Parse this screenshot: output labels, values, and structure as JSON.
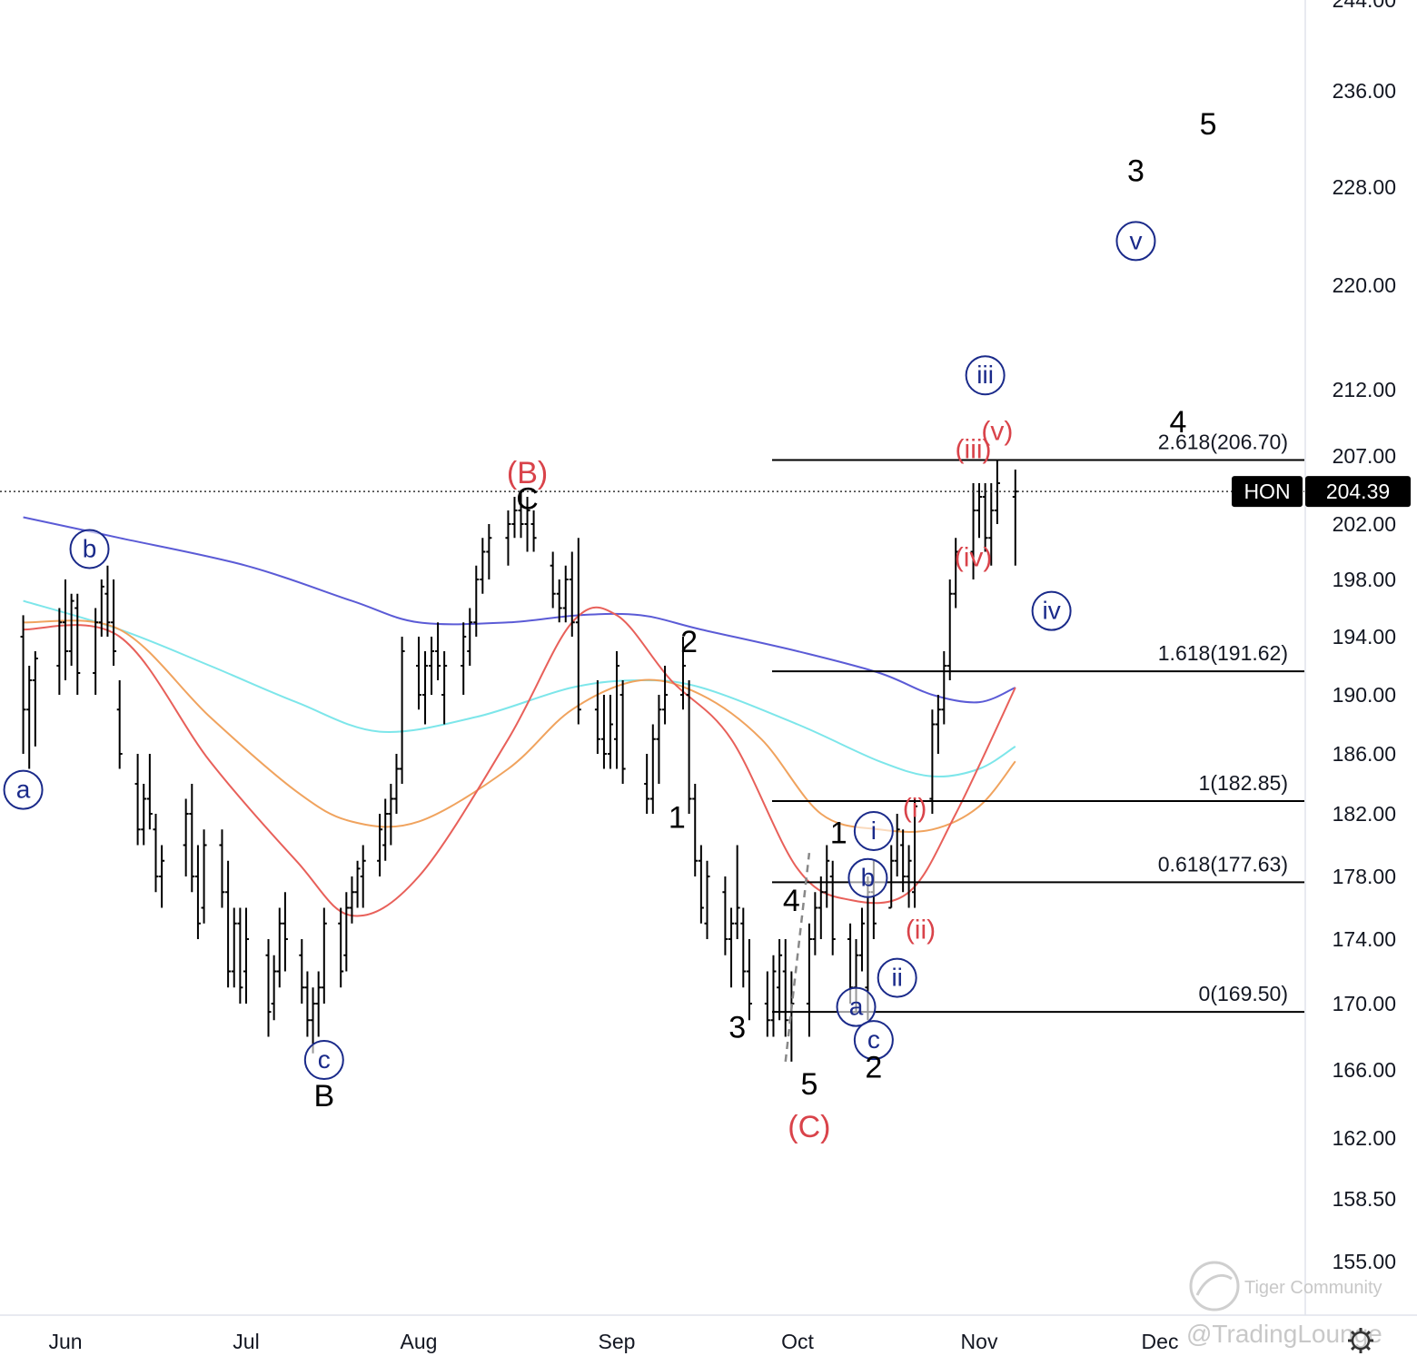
{
  "chart_data": {
    "type": "bar",
    "symbol": "HON",
    "last_price": "204.39",
    "y_axis": {
      "ticks": [
        "244.00",
        "236.00",
        "228.00",
        "220.00",
        "212.00",
        "207.00",
        "202.00",
        "198.00",
        "194.00",
        "190.00",
        "186.00",
        "182.00",
        "178.00",
        "174.00",
        "170.00",
        "166.00",
        "162.00",
        "158.50",
        "155.00"
      ]
    },
    "x_axis": {
      "ticks": [
        "Jun",
        "Jul",
        "Aug",
        "Sep",
        "Oct",
        "Nov",
        "Dec"
      ]
    },
    "fib_levels": [
      {
        "label": "2.618(206.70)",
        "value": 206.7
      },
      {
        "label": "1.618(191.62)",
        "value": 191.62
      },
      {
        "label": "1(182.85)",
        "value": 182.85
      },
      {
        "label": "0.618(177.63)",
        "value": 177.63
      },
      {
        "label": "0(169.50)",
        "value": 169.5
      }
    ],
    "ohlc": [
      [
        "2022-05-25",
        194,
        195.5,
        186,
        189
      ],
      [
        "2022-05-26",
        189,
        192,
        185,
        191
      ],
      [
        "2022-05-27",
        191,
        193,
        186.5,
        192.5
      ],
      [
        "2022-05-31",
        192,
        196,
        190,
        195
      ],
      [
        "2022-06-01",
        195,
        198,
        191,
        193
      ],
      [
        "2022-06-02",
        193,
        197,
        192,
        196.5
      ],
      [
        "2022-06-03",
        196,
        197,
        190,
        191.5
      ],
      [
        "2022-06-06",
        191.5,
        196,
        190,
        195
      ],
      [
        "2022-06-07",
        195,
        198,
        194,
        197.5
      ],
      [
        "2022-06-08",
        197,
        199,
        194,
        195
      ],
      [
        "2022-06-09",
        195,
        198,
        192,
        193
      ],
      [
        "2022-06-10",
        189,
        191,
        185,
        186
      ],
      [
        "2022-06-13",
        184,
        186,
        180,
        181
      ],
      [
        "2022-06-14",
        181,
        184,
        180,
        183
      ],
      [
        "2022-06-15",
        183,
        186,
        181,
        182
      ],
      [
        "2022-06-16",
        181,
        182,
        177,
        178
      ],
      [
        "2022-06-17",
        178,
        180,
        176,
        179
      ],
      [
        "2022-06-21",
        180,
        183,
        178,
        182
      ],
      [
        "2022-06-22",
        182,
        184,
        177,
        178
      ],
      [
        "2022-06-23",
        178,
        180,
        174,
        175
      ],
      [
        "2022-06-24",
        176,
        181,
        175,
        180
      ],
      [
        "2022-06-27",
        180,
        181,
        176,
        177
      ],
      [
        "2022-06-28",
        177,
        179,
        171,
        172
      ],
      [
        "2022-06-29",
        172,
        176,
        171,
        175
      ],
      [
        "2022-06-30",
        175,
        176,
        170,
        171
      ],
      [
        "2022-07-01",
        172,
        176,
        170,
        174
      ],
      [
        "2022-07-05",
        173,
        174,
        168,
        169.5
      ],
      [
        "2022-07-06",
        170,
        173,
        169,
        172
      ],
      [
        "2022-07-07",
        172,
        176,
        171,
        175
      ],
      [
        "2022-07-08",
        175,
        177,
        172,
        174
      ],
      [
        "2022-07-11",
        173,
        174,
        170,
        171
      ],
      [
        "2022-07-12",
        171,
        172,
        168,
        169
      ],
      [
        "2022-07-13",
        169,
        171,
        167,
        170
      ],
      [
        "2022-07-14",
        170,
        172,
        168,
        171
      ],
      [
        "2022-07-15",
        171,
        176,
        170,
        175
      ],
      [
        "2022-07-18",
        175,
        176,
        171,
        172
      ],
      [
        "2022-07-19",
        173,
        177,
        172,
        176
      ],
      [
        "2022-07-20",
        176,
        178,
        175,
        177
      ],
      [
        "2022-07-21",
        177,
        179,
        176,
        178.5
      ],
      [
        "2022-07-22",
        178,
        180,
        176,
        179
      ],
      [
        "2022-07-25",
        179,
        182,
        178,
        181
      ],
      [
        "2022-07-26",
        180,
        183,
        179,
        182
      ],
      [
        "2022-07-27",
        182,
        184,
        180,
        183
      ],
      [
        "2022-07-28",
        183,
        186,
        182,
        185
      ],
      [
        "2022-07-29",
        185,
        194,
        184,
        193
      ],
      [
        "2022-08-01",
        192,
        194,
        189,
        190
      ],
      [
        "2022-08-02",
        190,
        193,
        188,
        192
      ],
      [
        "2022-08-03",
        192,
        194,
        190,
        193
      ],
      [
        "2022-08-04",
        193,
        195,
        191,
        192
      ],
      [
        "2022-08-05",
        190,
        193,
        188,
        192
      ],
      [
        "2022-08-08",
        192,
        195,
        190,
        194
      ],
      [
        "2022-08-09",
        193,
        196,
        192,
        195
      ],
      [
        "2022-08-10",
        195,
        199,
        194,
        198
      ],
      [
        "2022-08-11",
        198,
        201,
        197,
        200
      ],
      [
        "2022-08-12",
        200,
        202,
        198,
        201
      ],
      [
        "2022-08-15",
        201,
        203,
        199,
        202
      ],
      [
        "2022-08-16",
        202,
        204,
        201,
        203
      ],
      [
        "2022-08-17",
        203,
        204.5,
        201,
        202
      ],
      [
        "2022-08-18",
        202,
        204,
        200,
        203
      ],
      [
        "2022-08-19",
        202,
        203,
        200,
        201
      ],
      [
        "2022-08-22",
        199,
        200,
        196,
        197
      ],
      [
        "2022-08-23",
        197,
        198,
        195,
        196
      ],
      [
        "2022-08-24",
        196,
        199,
        195,
        198
      ],
      [
        "2022-08-25",
        198,
        200,
        194,
        195
      ],
      [
        "2022-08-26",
        195,
        201,
        188,
        189
      ],
      [
        "2022-08-29",
        189,
        191,
        186,
        187
      ],
      [
        "2022-08-30",
        187,
        190,
        185,
        186
      ],
      [
        "2022-08-31",
        186,
        190,
        185,
        188
      ],
      [
        "2022-09-01",
        187,
        193,
        185,
        192
      ],
      [
        "2022-09-02",
        190,
        191,
        184,
        185
      ],
      [
        "2022-09-06",
        184,
        186,
        182,
        183
      ],
      [
        "2022-09-07",
        183,
        188,
        182,
        187
      ],
      [
        "2022-09-08",
        187,
        190,
        184,
        189
      ],
      [
        "2022-09-09",
        189,
        192,
        188,
        190
      ],
      [
        "2022-09-12",
        190,
        194,
        189,
        192
      ],
      [
        "2022-09-13",
        190,
        191,
        182,
        183
      ],
      [
        "2022-09-14",
        183,
        184,
        178,
        179
      ],
      [
        "2022-09-15",
        179,
        180,
        175,
        176
      ],
      [
        "2022-09-16",
        175,
        179,
        174,
        178
      ],
      [
        "2022-09-19",
        177,
        178,
        173,
        174
      ],
      [
        "2022-09-20",
        174,
        176,
        171,
        175
      ],
      [
        "2022-09-21",
        175,
        180,
        174,
        176
      ],
      [
        "2022-09-22",
        175,
        176,
        171,
        172
      ],
      [
        "2022-09-23",
        172,
        174,
        169,
        170
      ],
      [
        "2022-09-26",
        170,
        172,
        168,
        169
      ],
      [
        "2022-09-27",
        169,
        173,
        168,
        172
      ],
      [
        "2022-09-28",
        171,
        174,
        169,
        173
      ],
      [
        "2022-09-29",
        172,
        174,
        168,
        169
      ],
      [
        "2022-09-30",
        169,
        172,
        166.5,
        170
      ],
      [
        "2022-10-03",
        170,
        175,
        168,
        174
      ],
      [
        "2022-10-04",
        174,
        177,
        173,
        176
      ],
      [
        "2022-10-05",
        176,
        178,
        174,
        177
      ],
      [
        "2022-10-06",
        177,
        180,
        176,
        179
      ],
      [
        "2022-10-07",
        178,
        179,
        173,
        174
      ],
      [
        "2022-10-10",
        174,
        175,
        170,
        171
      ],
      [
        "2022-10-11",
        171,
        174,
        169.5,
        173
      ],
      [
        "2022-10-12",
        173,
        176,
        172,
        175
      ],
      [
        "2022-10-13",
        171,
        178,
        169,
        177
      ],
      [
        "2022-10-14",
        177,
        179,
        174,
        175
      ],
      [
        "2022-10-17",
        176,
        180,
        176,
        179
      ],
      [
        "2022-10-18",
        179,
        182,
        178,
        181
      ],
      [
        "2022-10-19",
        180,
        181,
        177,
        178
      ],
      [
        "2022-10-20",
        178,
        180,
        176,
        179
      ],
      [
        "2022-10-21",
        177,
        183,
        176,
        182.5
      ],
      [
        "2022-10-24",
        183,
        189,
        182,
        188
      ],
      [
        "2022-10-25",
        188,
        190,
        186,
        189
      ],
      [
        "2022-10-26",
        189,
        193,
        188,
        192
      ],
      [
        "2022-10-27",
        192,
        198,
        191,
        197
      ],
      [
        "2022-10-28",
        197,
        201,
        196,
        200
      ],
      [
        "2022-10-31",
        200,
        205,
        198,
        203
      ],
      [
        "2022-11-01",
        203,
        205,
        201,
        204
      ],
      [
        "2022-11-02",
        204,
        205,
        200,
        201
      ],
      [
        "2022-11-03",
        201,
        205,
        199,
        203
      ],
      [
        "2022-11-04",
        203,
        206.7,
        202,
        205
      ],
      [
        "2022-11-07",
        204,
        206,
        199,
        204.39
      ]
    ],
    "moving_averages": [
      {
        "color": "#5b5bd6",
        "points": [
          [
            "2022-05-25",
            202.5
          ],
          [
            "2022-06-10",
            201
          ],
          [
            "2022-07-01",
            199
          ],
          [
            "2022-07-20",
            196.5
          ],
          [
            "2022-08-01",
            195
          ],
          [
            "2022-08-15",
            195
          ],
          [
            "2022-08-26",
            195.5
          ],
          [
            "2022-09-05",
            195.5
          ],
          [
            "2022-09-15",
            194.5
          ],
          [
            "2022-10-01",
            193
          ],
          [
            "2022-10-15",
            191.5
          ],
          [
            "2022-10-24",
            190
          ],
          [
            "2022-11-01",
            189.5
          ],
          [
            "2022-11-07",
            190.5
          ]
        ]
      },
      {
        "color": "#7de6ea",
        "points": [
          [
            "2022-05-25",
            196.5
          ],
          [
            "2022-06-10",
            194.5
          ],
          [
            "2022-06-25",
            192
          ],
          [
            "2022-07-10",
            189.5
          ],
          [
            "2022-07-25",
            187.5
          ],
          [
            "2022-08-10",
            188.5
          ],
          [
            "2022-08-25",
            190.5
          ],
          [
            "2022-09-05",
            191
          ],
          [
            "2022-09-15",
            190.5
          ],
          [
            "2022-10-01",
            188
          ],
          [
            "2022-10-15",
            185.5
          ],
          [
            "2022-10-24",
            184.5
          ],
          [
            "2022-11-01",
            185
          ],
          [
            "2022-11-07",
            186.5
          ]
        ]
      },
      {
        "color": "#f0a35e",
        "points": [
          [
            "2022-05-25",
            195
          ],
          [
            "2022-06-10",
            194.5
          ],
          [
            "2022-06-25",
            188.5
          ],
          [
            "2022-07-10",
            183.5
          ],
          [
            "2022-07-20",
            181.5
          ],
          [
            "2022-08-01",
            181.5
          ],
          [
            "2022-08-15",
            185
          ],
          [
            "2022-08-25",
            189
          ],
          [
            "2022-09-05",
            191
          ],
          [
            "2022-09-15",
            190
          ],
          [
            "2022-09-25",
            187
          ],
          [
            "2022-10-05",
            182
          ],
          [
            "2022-10-15",
            181
          ],
          [
            "2022-10-24",
            181
          ],
          [
            "2022-11-01",
            182.5
          ],
          [
            "2022-11-07",
            185.5
          ]
        ]
      },
      {
        "color": "#e8605a",
        "points": [
          [
            "2022-05-25",
            194.5
          ],
          [
            "2022-06-10",
            194
          ],
          [
            "2022-06-25",
            185.5
          ],
          [
            "2022-07-10",
            179
          ],
          [
            "2022-07-20",
            175.5
          ],
          [
            "2022-08-01",
            178
          ],
          [
            "2022-08-15",
            187
          ],
          [
            "2022-08-25",
            195
          ],
          [
            "2022-09-01",
            195.5
          ],
          [
            "2022-09-10",
            191
          ],
          [
            "2022-09-20",
            187
          ],
          [
            "2022-10-01",
            178.5
          ],
          [
            "2022-10-10",
            176.5
          ],
          [
            "2022-10-20",
            177
          ],
          [
            "2022-10-28",
            182
          ],
          [
            "2022-11-07",
            190.5
          ]
        ]
      }
    ],
    "wave_labels": [
      {
        "text": "a",
        "style": "circle",
        "date": "2022-05-25",
        "price": 183.6
      },
      {
        "text": "b",
        "style": "circle",
        "date": "2022-06-05",
        "price": 200.2
      },
      {
        "text": "c",
        "style": "circle",
        "date": "2022-07-15",
        "price": 166.6
      },
      {
        "text": "B",
        "style": "black",
        "date": "2022-07-15",
        "price": 164.5
      },
      {
        "text": "(B)",
        "style": "redbig",
        "date": "2022-08-18",
        "price": 205.8
      },
      {
        "text": "C",
        "style": "black",
        "date": "2022-08-18",
        "price": 203.9
      },
      {
        "text": "2",
        "style": "black",
        "date": "2022-09-13",
        "price": 193.7
      },
      {
        "text": "1",
        "style": "black",
        "date": "2022-09-11",
        "price": 181.8
      },
      {
        "text": "3",
        "style": "black",
        "date": "2022-09-21",
        "price": 168.6
      },
      {
        "text": "4",
        "style": "black",
        "date": "2022-09-30",
        "price": 176.5
      },
      {
        "text": "5",
        "style": "black",
        "date": "2022-10-03",
        "price": 165.2
      },
      {
        "text": "(C)",
        "style": "redbig",
        "date": "2022-10-03",
        "price": 162.7
      },
      {
        "text": "1",
        "style": "black",
        "date": "2022-10-08",
        "price": 180.8
      },
      {
        "text": "i",
        "style": "circle",
        "date": "2022-10-14",
        "price": 180.9
      },
      {
        "text": "b",
        "style": "circle",
        "date": "2022-10-13",
        "price": 177.9
      },
      {
        "text": "a",
        "style": "circle",
        "date": "2022-10-11",
        "price": 169.8
      },
      {
        "text": "c",
        "style": "circle",
        "date": "2022-10-14",
        "price": 167.8
      },
      {
        "text": "2",
        "style": "black",
        "date": "2022-10-14",
        "price": 166.2
      },
      {
        "text": "ii",
        "style": "circle",
        "date": "2022-10-18",
        "price": 171.6
      },
      {
        "text": "(i)",
        "style": "red",
        "date": "2022-10-21",
        "price": 182.4
      },
      {
        "text": "(ii)",
        "style": "red",
        "date": "2022-10-22",
        "price": 174.6
      },
      {
        "text": "(iii)",
        "style": "red",
        "date": "2022-10-31",
        "price": 207.5
      },
      {
        "text": "(v)",
        "style": "red",
        "date": "2022-11-04",
        "price": 208.9
      },
      {
        "text": "iii",
        "style": "circle",
        "date": "2022-11-02",
        "price": 213.1
      },
      {
        "text": "(iv)",
        "style": "red",
        "date": "2022-10-31",
        "price": 199.6
      },
      {
        "text": "iv",
        "style": "circle",
        "date": "2022-11-13",
        "price": 195.8
      },
      {
        "text": "v",
        "style": "circle",
        "date": "2022-11-27",
        "price": 223.6
      },
      {
        "text": "3",
        "style": "black",
        "date": "2022-11-27",
        "price": 229.4
      },
      {
        "text": "4",
        "style": "black",
        "date": "2022-12-04",
        "price": 209.6
      },
      {
        "text": "5",
        "style": "black",
        "date": "2022-12-09",
        "price": 233.3
      }
    ],
    "watermarks": [
      "Tiger Community",
      "@TradingLounge"
    ]
  }
}
